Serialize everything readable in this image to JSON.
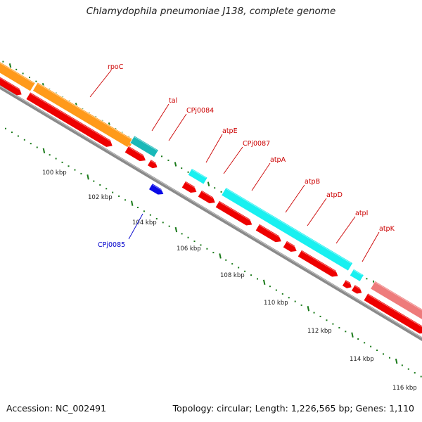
{
  "title": "Chlamydophila pneumoniae J138, complete genome",
  "footer": {
    "accession": "Accession: NC_002491",
    "summary": "Topology: circular; Length: 1,226,565 bp; Genes: 1,110"
  },
  "colors": {
    "backbone": "#8a8a8a",
    "ticks": "#1a7a1a",
    "forward_label": "#cc0000",
    "reverse_label": "#0000cc"
  },
  "scale_labels": [
    "100 kbp",
    "102 kbp",
    "104 kbp",
    "106 kbp",
    "108 kbp",
    "110 kbp",
    "112 kbp",
    "114 kbp",
    "116 kbp"
  ],
  "features": [
    {
      "id": "rpoC",
      "label": "rpoC",
      "strand": "forward"
    },
    {
      "id": "tal",
      "label": "tal",
      "strand": "forward"
    },
    {
      "id": "CPj0084",
      "label": "CPj0084",
      "strand": "forward"
    },
    {
      "id": "atpE",
      "label": "atpE",
      "strand": "forward"
    },
    {
      "id": "CPj0087",
      "label": "CPj0087",
      "strand": "forward"
    },
    {
      "id": "atpA",
      "label": "atpA",
      "strand": "forward"
    },
    {
      "id": "atpB",
      "label": "atpB",
      "strand": "forward"
    },
    {
      "id": "atpD",
      "label": "atpD",
      "strand": "forward"
    },
    {
      "id": "atpI",
      "label": "atpI",
      "strand": "forward"
    },
    {
      "id": "atpK",
      "label": "atpK",
      "strand": "forward"
    },
    {
      "id": "CPj0085",
      "label": "CPj0085",
      "strand": "reverse"
    }
  ]
}
